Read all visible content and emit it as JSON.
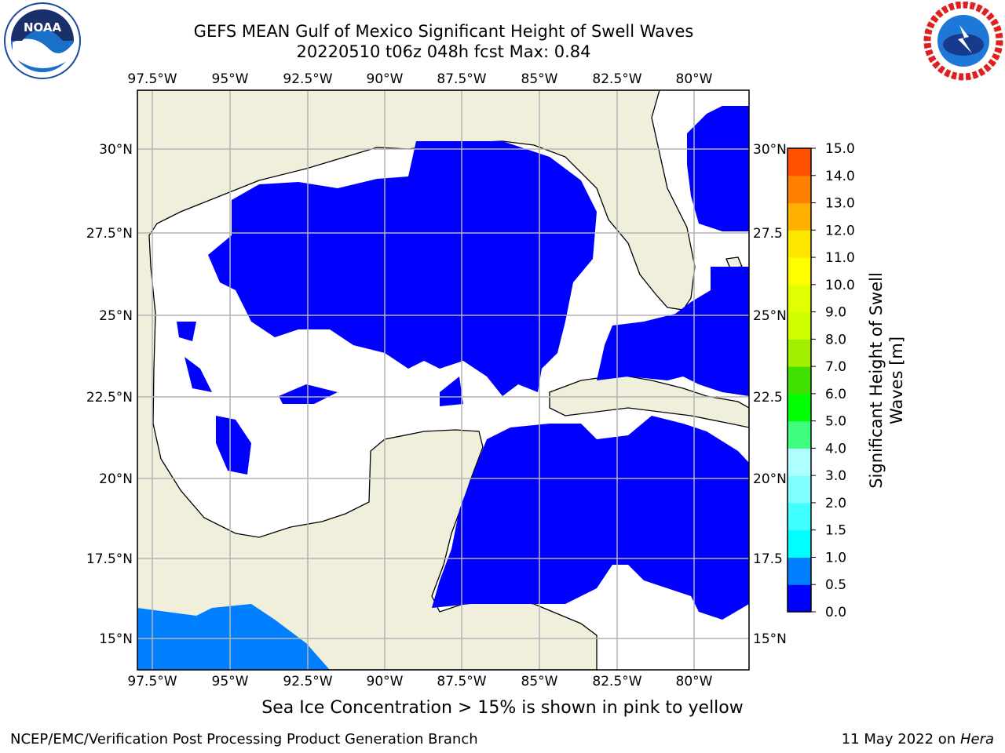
{
  "header": {
    "title_line1": "GEFS MEAN Gulf of Mexico Significant Height of Swell Waves",
    "title_line2": "20220510 t06z 048h fcst   Max: 0.84"
  },
  "logos": {
    "left": {
      "name": "noaa-logo",
      "text": "NOAA"
    },
    "right": {
      "name": "nws-logo"
    }
  },
  "map": {
    "lon_labels": [
      "97.5°W",
      "95°W",
      "92.5°W",
      "90°W",
      "87.5°W",
      "85°W",
      "82.5°W",
      "80°W"
    ],
    "lat_labels": [
      "30°N",
      "27.5°N",
      "25°N",
      "22.5°N",
      "20°N",
      "17.5°N",
      "15°N"
    ],
    "lat_labels_right": [
      "30°N",
      "27.5",
      "25°N",
      "22.5",
      "20°N",
      "17.5",
      "15°N"
    ],
    "colors": {
      "land": "#efefdc",
      "ocean_low": "#0000ff",
      "ocean_mid": "#0080ff",
      "grid": "#b4b4b4",
      "coast": "#000000"
    }
  },
  "colorbar": {
    "ticks": [
      "15.0",
      "14.0",
      "13.0",
      "12.0",
      "11.0",
      "10.0",
      "9.0",
      "8.0",
      "7.0",
      "6.0",
      "5.0",
      "4.0",
      "3.0",
      "2.0",
      "1.5",
      "1.0",
      "0.5",
      "0.0"
    ],
    "label_line1": "Significant Height of Swell",
    "label_line2": "Waves [m]",
    "colors": [
      "#0000ff",
      "#0080ff",
      "#00ffff",
      "#40ffff",
      "#80ffff",
      "#b0ffff",
      "#40ff80",
      "#00ff00",
      "#40e000",
      "#a0f000",
      "#d0ff00",
      "#e0ff00",
      "#ffff00",
      "#ffe800",
      "#ffb000",
      "#ff8000",
      "#ff5000",
      "#ff2800",
      "#ff0000"
    ]
  },
  "note": "Sea Ice Concentration > 15% is shown in pink to yellow",
  "footer": {
    "left": "NCEP/EMC/Verification Post Processing Product Generation Branch",
    "right_prefix": "11 May 2022 on ",
    "right_italic": "Hera"
  }
}
